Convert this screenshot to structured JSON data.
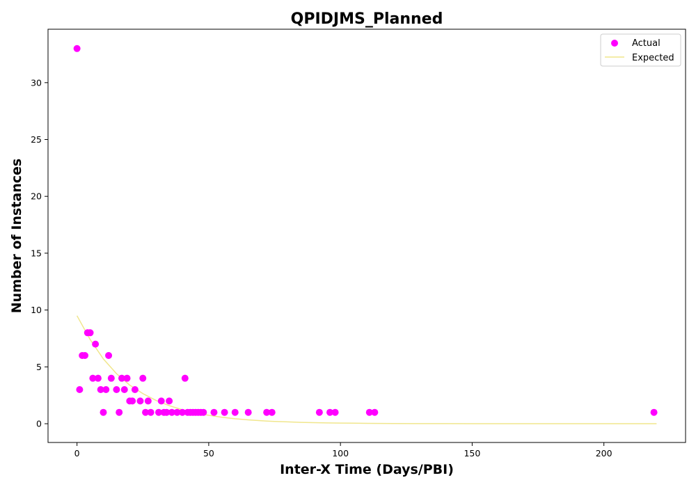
{
  "chart_data": {
    "type": "scatter",
    "title": "QPIDJMS_Planned",
    "xlabel": "Inter-X Time (Days/PBI)",
    "ylabel": "Number of Instances",
    "xlim": [
      -11,
      231
    ],
    "ylim": [
      -1.65,
      34.7
    ],
    "xticks": [
      0,
      50,
      100,
      150,
      200
    ],
    "yticks": [
      0,
      5,
      10,
      15,
      20,
      25,
      30
    ],
    "grid": false,
    "legend": "top-right",
    "series": [
      {
        "name": "Actual",
        "kind": "scatter",
        "color": "#ff00ff",
        "points": [
          [
            0,
            33
          ],
          [
            1,
            3
          ],
          [
            2,
            6
          ],
          [
            3,
            6
          ],
          [
            4,
            8
          ],
          [
            5,
            8
          ],
          [
            6,
            4
          ],
          [
            7,
            7
          ],
          [
            8,
            4
          ],
          [
            9,
            3
          ],
          [
            10,
            1
          ],
          [
            11,
            3
          ],
          [
            12,
            6
          ],
          [
            13,
            4
          ],
          [
            15,
            3
          ],
          [
            16,
            1
          ],
          [
            17,
            4
          ],
          [
            18,
            3
          ],
          [
            19,
            4
          ],
          [
            20,
            2
          ],
          [
            21,
            2
          ],
          [
            22,
            3
          ],
          [
            24,
            2
          ],
          [
            25,
            4
          ],
          [
            26,
            1
          ],
          [
            27,
            2
          ],
          [
            28,
            1
          ],
          [
            31,
            1
          ],
          [
            32,
            2
          ],
          [
            33,
            1
          ],
          [
            34,
            1
          ],
          [
            35,
            2
          ],
          [
            36,
            1
          ],
          [
            38,
            1
          ],
          [
            40,
            1
          ],
          [
            41,
            4
          ],
          [
            42,
            1
          ],
          [
            43,
            1
          ],
          [
            44,
            1
          ],
          [
            45,
            1
          ],
          [
            46,
            1
          ],
          [
            47,
            1
          ],
          [
            48,
            1
          ],
          [
            52,
            1
          ],
          [
            56,
            1
          ],
          [
            60,
            1
          ],
          [
            65,
            1
          ],
          [
            72,
            1
          ],
          [
            74,
            1
          ],
          [
            92,
            1
          ],
          [
            96,
            1
          ],
          [
            98,
            1
          ],
          [
            111,
            1
          ],
          [
            113,
            1
          ],
          [
            219,
            1
          ]
        ]
      },
      {
        "name": "Expected",
        "kind": "line",
        "color": "#f0e68c",
        "x": [
          0,
          5,
          10,
          15,
          20,
          25,
          30,
          35,
          40,
          45,
          50,
          55,
          60,
          65,
          70,
          75,
          80,
          85,
          90,
          95,
          100,
          110,
          120,
          130,
          140,
          150,
          160,
          170,
          180,
          190,
          200,
          210,
          220
        ],
        "y": [
          9.5,
          7.4,
          5.7,
          4.4,
          3.4,
          2.65,
          2.05,
          1.59,
          1.23,
          0.95,
          0.74,
          0.57,
          0.44,
          0.34,
          0.26,
          0.2,
          0.16,
          0.12,
          0.095,
          0.074,
          0.057,
          0.034,
          0.021,
          0.012,
          0.0075,
          0.0045,
          0.0027,
          0.0016,
          0.001,
          0.0006,
          0.0004,
          0.0002,
          0.0001
        ]
      }
    ]
  }
}
